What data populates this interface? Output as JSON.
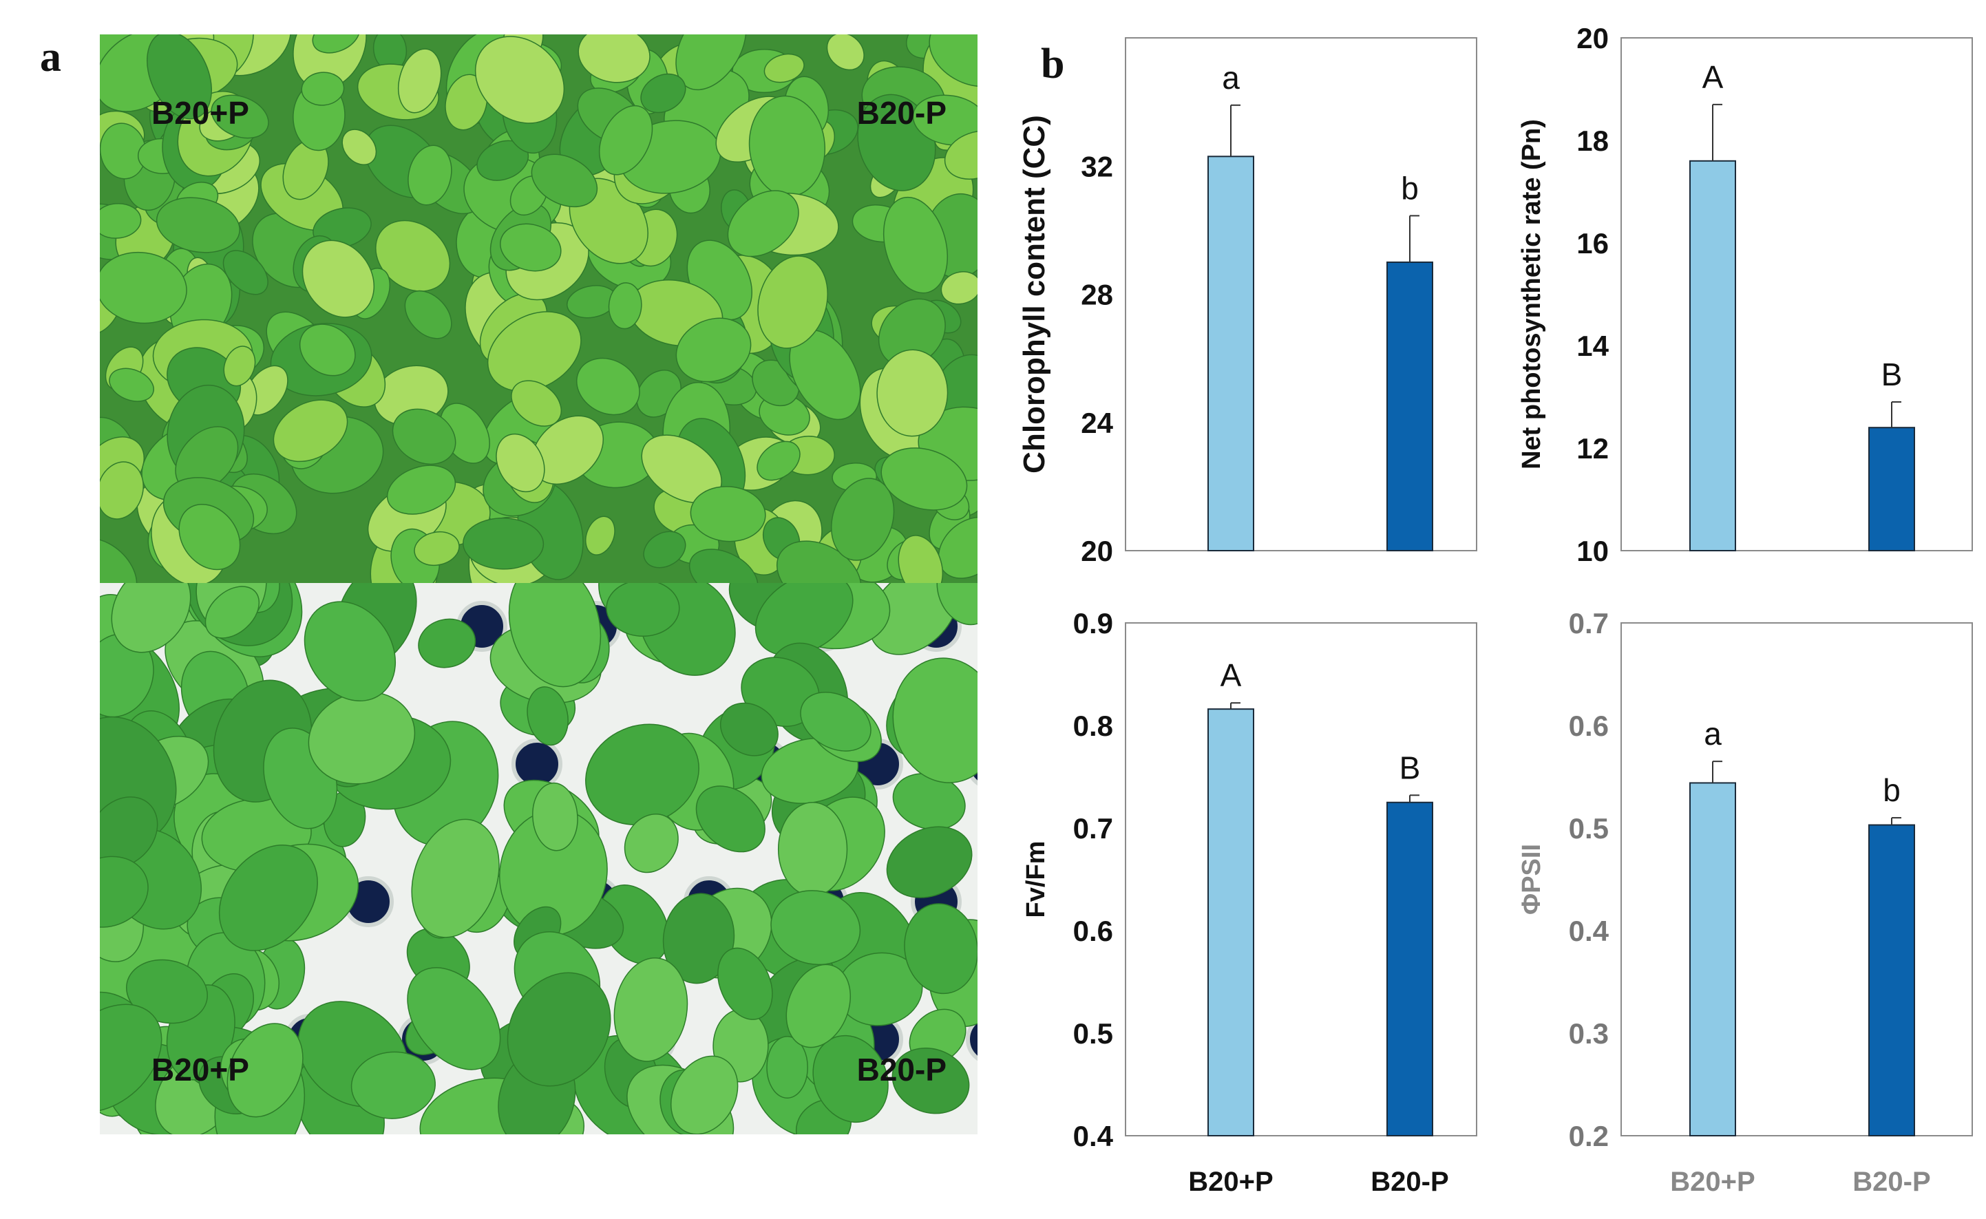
{
  "figure": {
    "panel_a_label": "a",
    "panel_b_label": "b"
  },
  "photos": {
    "top_left_label": "B20+P",
    "top_right_label": "B20-P",
    "bottom_left_label": "B20+P",
    "bottom_right_label": "B20-P"
  },
  "colors": {
    "light_bar": "#8ecae6",
    "dark_bar": "#0b63ad",
    "axis": "#555555",
    "leaf_light": "#8fd14f",
    "leaf_mid": "#5cbd45",
    "leaf_dark": "#3f9e3a",
    "tray_white": "#f2f2f2"
  },
  "chart_data": [
    {
      "type": "bar",
      "ylabel": "Chlorophyll content (CC)",
      "xlabel": "",
      "ylim": [
        20,
        36
      ],
      "yticks": [
        "20",
        "24",
        "28",
        "32"
      ],
      "ytick_values": [
        20,
        24,
        28,
        32
      ],
      "categories": [
        "B20+P",
        "B20-P"
      ],
      "show_category_labels": false,
      "values": [
        32.3,
        29.0
      ],
      "errors": [
        1.6,
        1.45
      ],
      "annotations": [
        "a",
        "b"
      ]
    },
    {
      "type": "bar",
      "ylabel": "Net photosynthetic rate (Pn)",
      "xlabel": "",
      "ylim": [
        10,
        20
      ],
      "yticks": [
        "10",
        "12",
        "14",
        "16",
        "18",
        "20"
      ],
      "ytick_values": [
        10,
        12,
        14,
        16,
        18,
        20
      ],
      "categories": [
        "B20+P",
        "B20-P"
      ],
      "show_category_labels": false,
      "values": [
        17.6,
        12.4
      ],
      "errors": [
        1.1,
        0.5
      ],
      "annotations": [
        "A",
        "B"
      ]
    },
    {
      "type": "bar",
      "ylabel": "Fv/Fm",
      "xlabel": "",
      "ylim": [
        0.4,
        0.9
      ],
      "yticks": [
        "0.4",
        "0.5",
        "0.6",
        "0.7",
        "0.8",
        "0.9"
      ],
      "ytick_values": [
        0.4,
        0.5,
        0.6,
        0.7,
        0.8,
        0.9
      ],
      "categories": [
        "B20+P",
        "B20-P"
      ],
      "show_category_labels": true,
      "values": [
        0.816,
        0.725
      ],
      "errors": [
        0.006,
        0.007
      ],
      "annotations": [
        "A",
        "B"
      ]
    },
    {
      "type": "bar",
      "ylabel": "ΦPSII",
      "xlabel": "",
      "ylim": [
        0.2,
        0.7
      ],
      "yticks": [
        "0.2",
        "0.3",
        "0.4",
        "0.5",
        "0.6",
        "0.7"
      ],
      "ytick_values": [
        0.2,
        0.3,
        0.4,
        0.5,
        0.6,
        0.7
      ],
      "categories": [
        "B20+P",
        "B20-P"
      ],
      "show_category_labels": true,
      "values": [
        0.544,
        0.503
      ],
      "errors": [
        0.021,
        0.007
      ],
      "annotations": [
        "a",
        "b"
      ]
    }
  ]
}
